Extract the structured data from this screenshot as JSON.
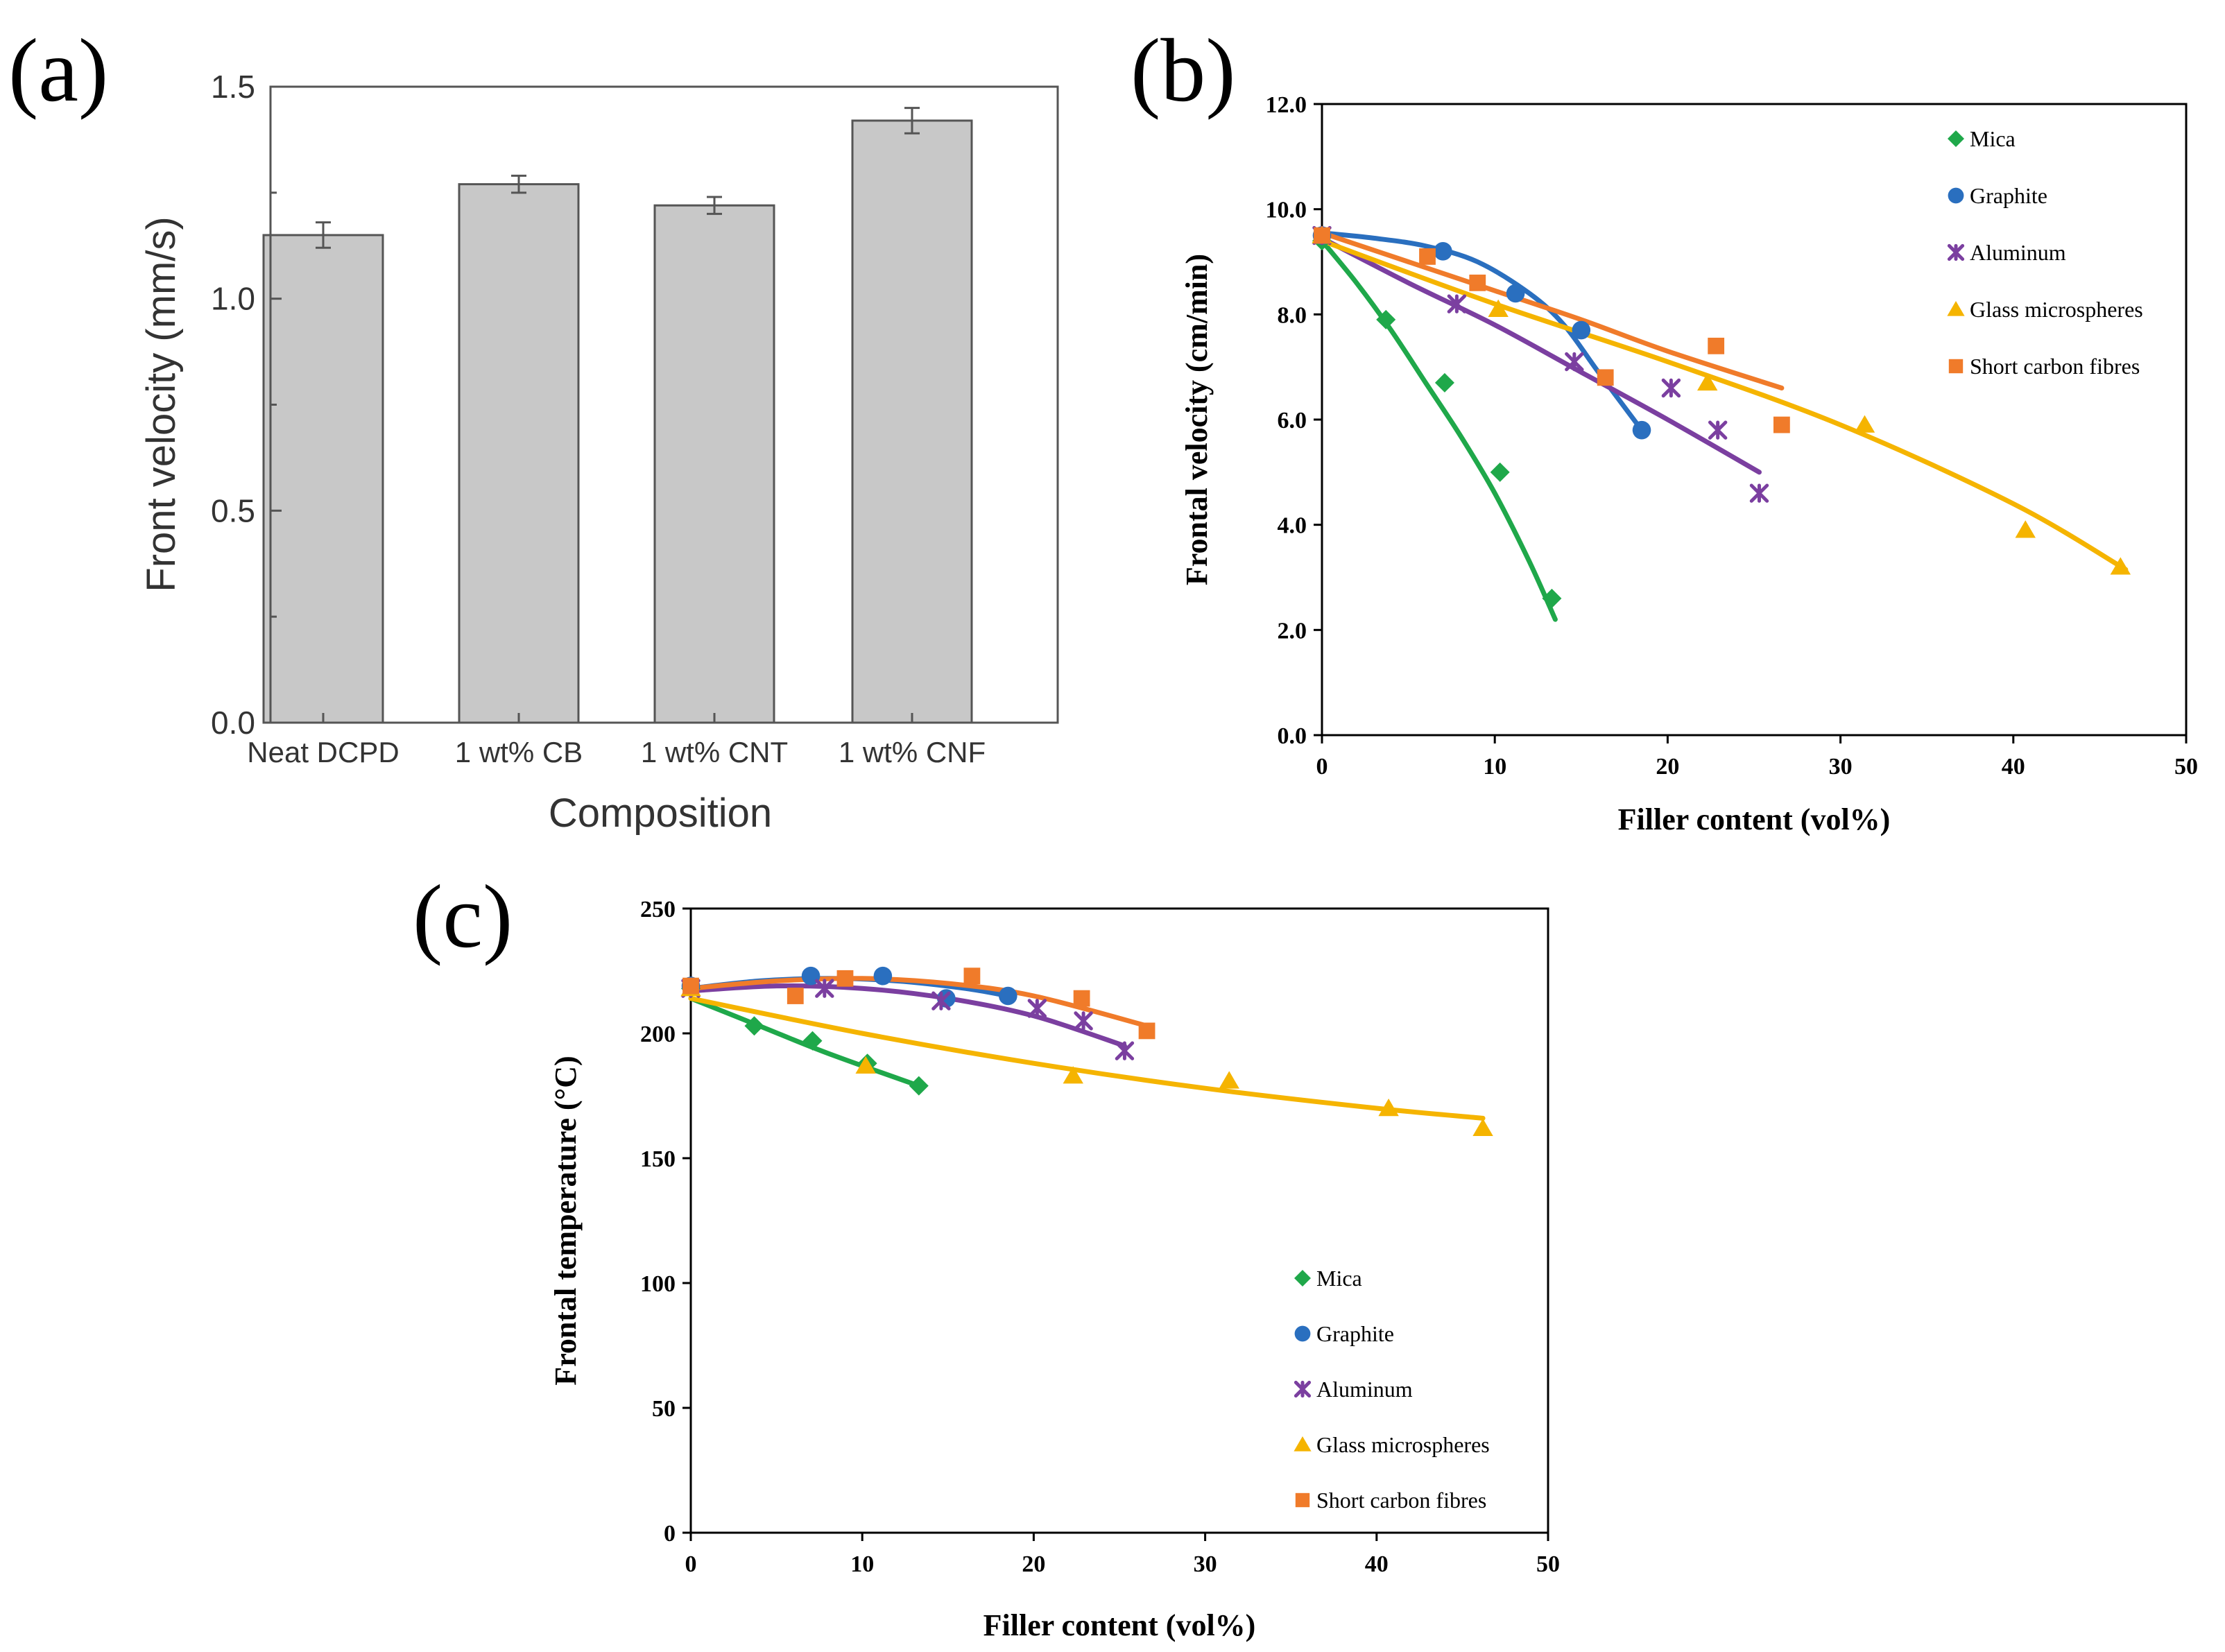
{
  "chart_data": [
    {
      "panel": "(a)",
      "type": "bar",
      "xlabel": "Composition",
      "ylabel": "Front velocity (mm/s)",
      "ylim": [
        0,
        1.5
      ],
      "yticks": [
        "0.0",
        "0.5",
        "1.0",
        "1.5"
      ],
      "categories": [
        "Neat DCPD",
        "1 wt% CB",
        "1 wt% CNT",
        "1 wt% CNF"
      ],
      "values": [
        1.15,
        1.27,
        1.22,
        1.42
      ],
      "errors": [
        0.03,
        0.02,
        0.02,
        0.03
      ],
      "bar_color": "#c8c8c8"
    },
    {
      "panel": "(b)",
      "type": "scatter",
      "xlabel": "Filler content (vol%)",
      "ylabel": "Frontal velocity (cm/min)",
      "xlim": [
        0,
        50
      ],
      "ylim": [
        0,
        12
      ],
      "xticks": [
        "0",
        "10",
        "20",
        "30",
        "40",
        "50"
      ],
      "yticks": [
        "0.0",
        "2.0",
        "4.0",
        "6.0",
        "8.0",
        "10.0",
        "12.0"
      ],
      "legend_position": "top-right",
      "series": [
        {
          "name": "Mica",
          "color": "#1fa84a",
          "marker": "diamond",
          "x": [
            0,
            3.7,
            7.1,
            10.3,
            13.3
          ],
          "y": [
            9.4,
            7.9,
            6.7,
            5.0,
            2.6
          ],
          "fit": {
            "x": [
              0,
              2,
              4,
              6,
              8,
              10,
              12,
              13.5
            ],
            "y": [
              9.4,
              8.6,
              7.7,
              6.7,
              5.7,
              4.6,
              3.3,
              2.2
            ]
          }
        },
        {
          "name": "Graphite",
          "color": "#2a6fbf",
          "marker": "circle",
          "x": [
            0,
            7.0,
            11.2,
            15.0,
            18.5
          ],
          "y": [
            9.5,
            9.2,
            8.4,
            7.7,
            5.8
          ],
          "fit": {
            "x": [
              0,
              3,
              6,
              9,
              12,
              14,
              16,
              18.5
            ],
            "y": [
              9.55,
              9.45,
              9.3,
              9.0,
              8.4,
              7.8,
              6.9,
              5.8
            ]
          }
        },
        {
          "name": "Aluminum",
          "color": "#7b3fa0",
          "marker": "star",
          "x": [
            0,
            7.8,
            14.6,
            20.2,
            22.9,
            25.3
          ],
          "y": [
            9.5,
            8.2,
            7.1,
            6.6,
            5.8,
            4.6
          ],
          "fit": {
            "x": [
              0,
              5,
              10,
              15,
              20,
              25.3
            ],
            "y": [
              9.45,
              8.6,
              7.8,
              6.9,
              6.0,
              5.0
            ]
          }
        },
        {
          "name": "Glass microspheres",
          "color": "#f5b400",
          "marker": "triangle",
          "x": [
            0,
            10.2,
            22.3,
            31.4,
            40.7,
            46.2
          ],
          "y": [
            9.5,
            8.1,
            6.7,
            5.9,
            3.9,
            3.2
          ],
          "fit": {
            "x": [
              0,
              10,
              20,
              30,
              40,
              46.5
            ],
            "y": [
              9.4,
              8.2,
              7.1,
              5.9,
              4.4,
              3.15
            ]
          }
        },
        {
          "name": "Short carbon fibres",
          "color": "#f07b2a",
          "marker": "square",
          "x": [
            0,
            6.1,
            9.0,
            16.4,
            22.8,
            26.6
          ],
          "y": [
            9.5,
            9.1,
            8.6,
            6.8,
            7.4,
            5.9
          ],
          "fit": {
            "x": [
              0,
              5,
              10,
              15,
              20,
              26.6
            ],
            "y": [
              9.55,
              9.0,
              8.45,
              7.9,
              7.3,
              6.6
            ]
          }
        }
      ]
    },
    {
      "panel": "(c)",
      "type": "scatter",
      "xlabel": "Filler content (vol%)",
      "ylabel": "Frontal temperature (°C)",
      "xlim": [
        0,
        50
      ],
      "ylim": [
        0,
        250
      ],
      "xticks": [
        "0",
        "10",
        "20",
        "30",
        "40",
        "50"
      ],
      "yticks": [
        "0",
        "50",
        "100",
        "150",
        "200",
        "250"
      ],
      "legend_position": "bottom-right",
      "series": [
        {
          "name": "Mica",
          "color": "#1fa84a",
          "marker": "diamond",
          "x": [
            0,
            3.7,
            7.1,
            10.3,
            13.3
          ],
          "y": [
            218,
            203,
            197,
            188,
            179
          ],
          "fit": {
            "x": [
              0,
              4,
              8,
              13.3
            ],
            "y": [
              214,
              203,
              192,
              179
            ]
          }
        },
        {
          "name": "Graphite",
          "color": "#2a6fbf",
          "marker": "circle",
          "x": [
            0,
            7.0,
            11.2,
            14.9,
            18.5
          ],
          "y": [
            219,
            223,
            223,
            214,
            215
          ],
          "fit": {
            "x": [
              0,
              4,
              8,
              12,
              16,
              18.5
            ],
            "y": [
              218,
              221,
              222,
              221,
              218,
              215
            ]
          }
        },
        {
          "name": "Aluminum",
          "color": "#7b3fa0",
          "marker": "star",
          "x": [
            0,
            7.8,
            14.6,
            20.2,
            22.9,
            25.3
          ],
          "y": [
            218,
            218,
            213,
            210,
            205,
            193
          ],
          "fit": {
            "x": [
              0,
              5,
              10,
              15,
              20,
              25.3
            ],
            "y": [
              217,
              219,
              218,
              214,
              207,
              195
            ]
          }
        },
        {
          "name": "Glass microspheres",
          "color": "#f5b400",
          "marker": "triangle",
          "x": [
            0,
            10.2,
            22.3,
            31.4,
            40.7,
            46.2
          ],
          "y": [
            218,
            187,
            183,
            181,
            170,
            162
          ],
          "fit": {
            "x": [
              0,
              10,
              20,
              30,
              40,
              46.2
            ],
            "y": [
              214,
              200,
              188,
              178,
              170,
              166
            ]
          }
        },
        {
          "name": "Short carbon fibres",
          "color": "#f07b2a",
          "marker": "square",
          "x": [
            0,
            6.1,
            9.0,
            16.4,
            22.8,
            26.6
          ],
          "y": [
            219,
            215,
            222,
            223,
            214,
            201
          ],
          "fit": {
            "x": [
              0,
              5,
              10,
              15,
              20,
              26.6
            ],
            "y": [
              218,
              221,
              222,
              220,
              215,
              203
            ]
          }
        }
      ]
    }
  ]
}
